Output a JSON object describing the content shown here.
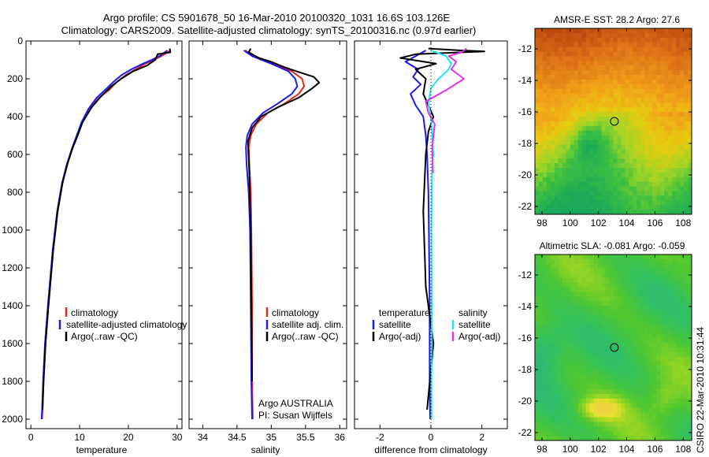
{
  "header": {
    "line1": "Argo profile: CS 5901678_50 16-Mar-2010 20100320_1031 16.6S 103.126E",
    "line2": "Climatology: CARS2009. Satellite-adjusted climatology: synTS_20100316.nc (0.97d earlier)"
  },
  "footer": {
    "credit": "CSIRO 22-Mar-2010 10:31:44"
  },
  "colors": {
    "climatology": "#e8251e",
    "satellite": "#1a1aee",
    "argo": "#000000",
    "sat_salinity": "#22e5ee",
    "argo_salinity": "#e632e6"
  },
  "chart_data": [
    {
      "id": "temperature",
      "type": "line",
      "xlabel": "temperature",
      "xlim": [
        -1,
        31
      ],
      "ylim": [
        2050,
        0
      ],
      "xticks": [
        "0",
        "10",
        "20",
        "30"
      ],
      "yticks": [
        "0",
        "200",
        "400",
        "600",
        "800",
        "1000",
        "1200",
        "1400",
        "1600",
        "1800",
        "2000"
      ],
      "legend": [
        "climatology",
        "satellite-adjusted climatology",
        "Argo(..raw -QC)"
      ],
      "series": [
        {
          "name": "climatology",
          "color": "red",
          "x": [
            28.6,
            26.8,
            25.2,
            23.5,
            21.5,
            19.5,
            17.5,
            16.0,
            14.0,
            12.0,
            10.5,
            9.5,
            8.5,
            7.5,
            6.5,
            5.5,
            4.6,
            3.6,
            3.0,
            2.6,
            2.4,
            2.3
          ],
          "y": [
            50,
            80,
            100,
            120,
            150,
            180,
            220,
            260,
            300,
            360,
            430,
            500,
            570,
            650,
            750,
            900,
            1100,
            1400,
            1600,
            1800,
            1950,
            2000
          ]
        },
        {
          "name": "satellite",
          "color": "blue",
          "x": [
            28.0,
            26.4,
            24.8,
            23.0,
            20.6,
            18.6,
            16.8,
            15.2,
            13.5,
            11.8,
            10.4,
            9.4,
            8.4,
            7.4,
            6.4,
            5.4,
            4.5,
            3.5,
            2.9,
            2.5,
            2.3,
            2.2
          ],
          "y": [
            50,
            80,
            100,
            120,
            150,
            180,
            220,
            260,
            300,
            360,
            430,
            500,
            570,
            650,
            750,
            900,
            1100,
            1400,
            1600,
            1800,
            1950,
            2000
          ]
        },
        {
          "name": "argo",
          "color": "black",
          "x": [
            28.5,
            28.6,
            26.0,
            25.5,
            23.8,
            21.0,
            18.5,
            16.5,
            14.5,
            12.5,
            10.6,
            9.6,
            8.5,
            7.5,
            6.5,
            5.5,
            4.6,
            3.6,
            3.0,
            2.6,
            2.4
          ],
          "y": [
            40,
            60,
            70,
            100,
            130,
            160,
            200,
            240,
            290,
            350,
            430,
            500,
            570,
            650,
            750,
            900,
            1100,
            1400,
            1600,
            1800,
            1950
          ]
        }
      ]
    },
    {
      "id": "salinity",
      "type": "line",
      "xlabel": "salinity",
      "xlim": [
        33.8,
        36.1
      ],
      "ylim": [
        2050,
        0
      ],
      "xticks": [
        "34",
        "34.5",
        "35",
        "35.5",
        "36"
      ],
      "legend": [
        "climatology",
        "satellite adj. clim.",
        "Argo(..raw -QC)"
      ],
      "annotation": [
        "Argo AUSTRALIA",
        "PI: Susan Wijffels"
      ],
      "series": [
        {
          "name": "climatology",
          "color": "red",
          "x": [
            34.62,
            34.75,
            35.05,
            35.3,
            35.45,
            35.48,
            35.4,
            35.2,
            34.95,
            34.78,
            34.7,
            34.67,
            34.68,
            34.7,
            34.71,
            34.72,
            34.72,
            34.73
          ],
          "y": [
            50,
            80,
            120,
            160,
            200,
            240,
            280,
            330,
            380,
            440,
            500,
            560,
            650,
            800,
            1000,
            1400,
            1800,
            2000
          ]
        },
        {
          "name": "satellite",
          "color": "blue",
          "x": [
            34.6,
            34.72,
            35.0,
            35.25,
            35.35,
            35.38,
            35.3,
            35.1,
            34.88,
            34.72,
            34.65,
            34.63,
            34.64,
            34.67,
            34.69,
            34.7,
            34.71,
            34.72
          ],
          "y": [
            50,
            80,
            120,
            160,
            200,
            240,
            280,
            330,
            380,
            440,
            500,
            560,
            650,
            800,
            1000,
            1400,
            1800,
            2000
          ]
        },
        {
          "name": "argo",
          "color": "black",
          "x": [
            34.7,
            34.67,
            34.82,
            35.0,
            35.2,
            35.45,
            35.62,
            35.7,
            35.6,
            35.4,
            35.1,
            34.85,
            34.72,
            34.66,
            34.68,
            34.7,
            34.71,
            34.72
          ],
          "y": [
            40,
            60,
            90,
            110,
            140,
            170,
            190,
            220,
            250,
            300,
            350,
            400,
            460,
            530,
            700,
            1000,
            1400,
            1800
          ]
        }
      ]
    },
    {
      "id": "difference",
      "type": "line",
      "xlabel": "difference from climatology",
      "xlim": [
        -3,
        3
      ],
      "ylim": [
        2050,
        0
      ],
      "xticks": [
        "-2",
        "0",
        "2"
      ],
      "legend_left": [
        "temperature",
        "satellite",
        "Argo(-adj)"
      ],
      "legend_right": [
        "salinity",
        "satellite",
        "Argo(-adj)"
      ],
      "series": [
        {
          "name": "temperature satellite",
          "color": "blue",
          "x": [
            -0.2,
            -0.6,
            -1.0,
            -0.5,
            -0.7,
            -0.4,
            -0.8,
            -0.6,
            -0.3,
            -0.2,
            -0.15,
            -0.1,
            -0.08,
            -0.05,
            -0.05,
            -0.03
          ],
          "y": [
            50,
            80,
            110,
            150,
            190,
            230,
            280,
            340,
            400,
            500,
            600,
            800,
            1000,
            1400,
            1800,
            2000
          ]
        },
        {
          "name": "temperature argo",
          "color": "black",
          "x": [
            -0.1,
            1.2,
            2.1,
            -0.6,
            -1.2,
            0.2,
            -0.6,
            -0.2,
            -0.3,
            0.1,
            -0.1,
            -0.2,
            -0.3,
            -0.2,
            0.1,
            -0.15
          ],
          "y": [
            40,
            50,
            55,
            70,
            90,
            120,
            150,
            200,
            280,
            400,
            480,
            600,
            900,
            1300,
            1600,
            1950
          ]
        },
        {
          "name": "salinity satellite",
          "color": "cyan",
          "x": [
            0.0,
            0.6,
            0.8,
            0.7,
            0.3,
            0.0,
            -0.1,
            0.0,
            0.05,
            0.1,
            0.05,
            0.03,
            0.02,
            0.03,
            0.02,
            0.02
          ],
          "y": [
            50,
            80,
            120,
            150,
            200,
            250,
            330,
            400,
            500,
            600,
            650,
            800,
            1000,
            1400,
            1800,
            2000
          ]
        },
        {
          "name": "salinity argo",
          "color": "magenta",
          "x": [
            1.4,
            1.2,
            0.7,
            1.0,
            0.8,
            1.3,
            0.6,
            -0.2,
            -0.1,
            0.15,
            0.1,
            0.05,
            0.08
          ],
          "y": [
            40,
            60,
            80,
            110,
            150,
            200,
            260,
            320,
            380,
            440,
            500,
            560,
            700
          ]
        }
      ]
    },
    {
      "id": "sst_map",
      "type": "heatmap",
      "title": "AMSR-E SST: 28.2 Argo: 27.6",
      "xlim": [
        97.5,
        108.6
      ],
      "ylim": [
        -22.5,
        -10.7
      ],
      "xticks": [
        "98",
        "100",
        "102",
        "104",
        "106",
        "108"
      ],
      "yticks": [
        "-12",
        "-14",
        "-16",
        "-18",
        "-20",
        "-22"
      ],
      "marker": {
        "lon": 103.126,
        "lat": -16.6
      }
    },
    {
      "id": "sla_map",
      "type": "heatmap",
      "title": "Altimetric SLA: -0.081 Argo: -0.059",
      "xlim": [
        97.5,
        108.6
      ],
      "ylim": [
        -22.5,
        -10.7
      ],
      "xticks": [
        "98",
        "100",
        "102",
        "104",
        "106",
        "108"
      ],
      "yticks": [
        "-12",
        "-14",
        "-16",
        "-18",
        "-20",
        "-22"
      ],
      "marker": {
        "lon": 103.126,
        "lat": -16.6
      }
    }
  ]
}
